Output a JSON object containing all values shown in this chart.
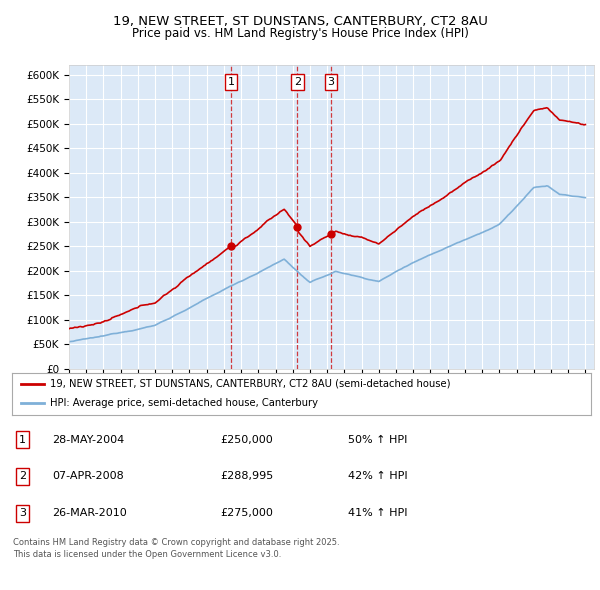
{
  "title": "19, NEW STREET, ST DUNSTANS, CANTERBURY, CT2 8AU",
  "subtitle": "Price paid vs. HM Land Registry's House Price Index (HPI)",
  "plot_bg_color": "#dce9f7",
  "ylim": [
    0,
    620000
  ],
  "yticks": [
    0,
    50000,
    100000,
    150000,
    200000,
    250000,
    300000,
    350000,
    400000,
    450000,
    500000,
    550000,
    600000
  ],
  "ytick_labels": [
    "£0",
    "£50K",
    "£100K",
    "£150K",
    "£200K",
    "£250K",
    "£300K",
    "£350K",
    "£400K",
    "£450K",
    "£500K",
    "£550K",
    "£600K"
  ],
  "sale_year_vals": [
    2004.41,
    2008.27,
    2010.23
  ],
  "sale_prices": [
    250000,
    288995,
    275000
  ],
  "sale_labels": [
    "1",
    "2",
    "3"
  ],
  "legend_line1": "19, NEW STREET, ST DUNSTANS, CANTERBURY, CT2 8AU (semi-detached house)",
  "legend_line2": "HPI: Average price, semi-detached house, Canterbury",
  "legend_line1_color": "#cc0000",
  "legend_line2_color": "#7fb0d8",
  "transaction_dates": [
    "28-MAY-2004",
    "07-APR-2008",
    "26-MAR-2010"
  ],
  "transaction_prices": [
    "£250,000",
    "£288,995",
    "£275,000"
  ],
  "transaction_hpis": [
    "50% ↑ HPI",
    "42% ↑ HPI",
    "41% ↑ HPI"
  ],
  "footer": "Contains HM Land Registry data © Crown copyright and database right 2025.\nThis data is licensed under the Open Government Licence v3.0.",
  "hpi_color": "#7fb0d8",
  "price_color": "#cc0000"
}
